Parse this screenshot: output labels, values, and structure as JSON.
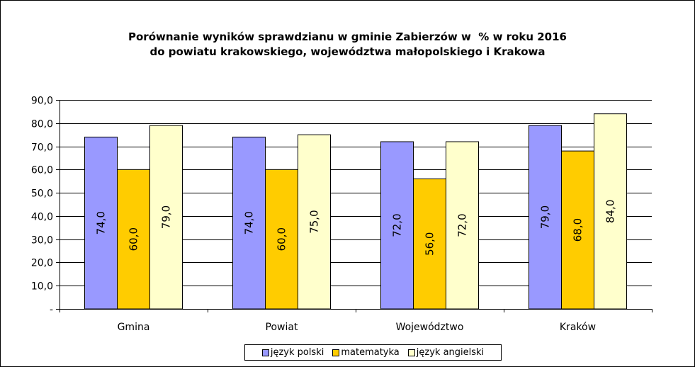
{
  "chart_data": {
    "type": "bar",
    "title_lines": [
      "Porównanie wyników sprawdzianu w gminie Zabierzów w  % w roku 2016",
      "do powiatu krakowskiego, województwa małopolskiego i Krakowa"
    ],
    "categories": [
      "Gmina",
      "Powiat",
      "Województwo",
      "Kraków"
    ],
    "series": [
      {
        "name": "język polski",
        "color": "#9999ff",
        "values": [
          74.0,
          74.0,
          72.0,
          79.0
        ],
        "value_labels": [
          "74,0",
          "74,0",
          "72,0",
          "79,0"
        ]
      },
      {
        "name": "matematyka",
        "color": "#ffcc00",
        "values": [
          60.0,
          60.0,
          56.0,
          68.0
        ],
        "value_labels": [
          "60,0",
          "60,0",
          "56,0",
          "68,0"
        ]
      },
      {
        "name": "język angielski",
        "color": "#ffffcc",
        "values": [
          79.0,
          75.0,
          72.0,
          84.0
        ],
        "value_labels": [
          "79,0",
          "75,0",
          "72,0",
          "84,0"
        ]
      }
    ],
    "ylim": [
      0,
      90
    ],
    "y_ticks": [
      0,
      10,
      20,
      30,
      40,
      50,
      60,
      70,
      80,
      90
    ],
    "y_tick_labels": [
      "-",
      "10,0",
      "20,0",
      "30,0",
      "40,0",
      "50,0",
      "60,0",
      "70,0",
      "80,0",
      "90,0"
    ],
    "grid": true,
    "legend_position": "bottom",
    "value_labels_rotated": true
  }
}
